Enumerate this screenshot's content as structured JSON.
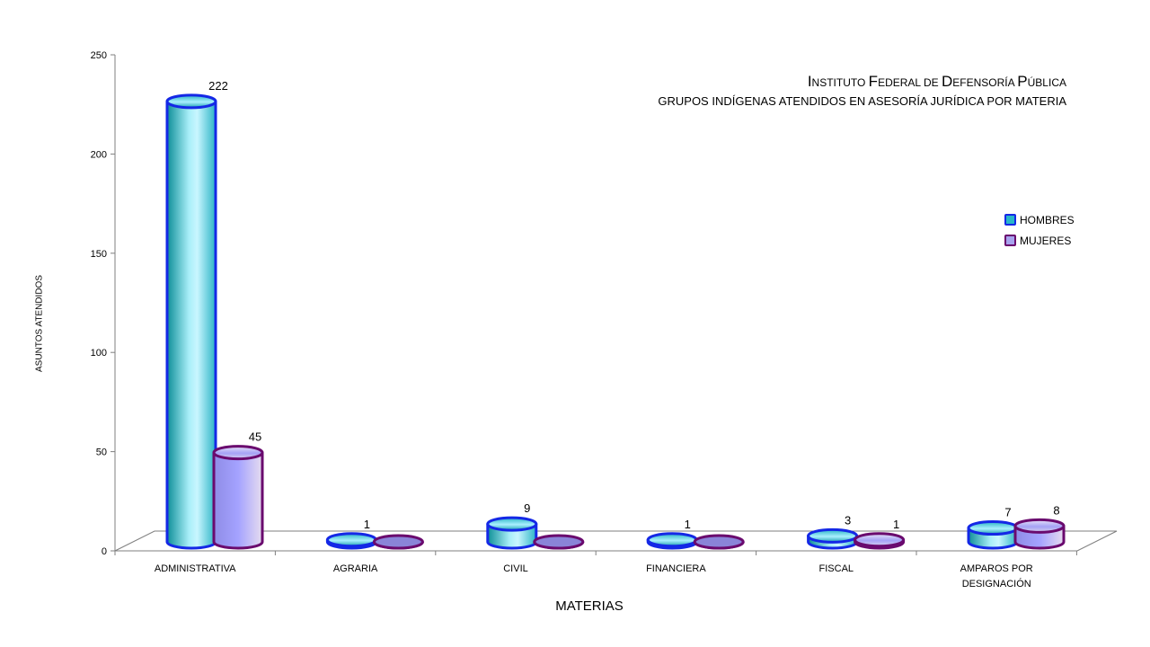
{
  "title_parts": [
    {
      "initial": "I",
      "rest": "nstituto "
    },
    {
      "initial": "F",
      "rest": "ederal de "
    },
    {
      "initial": "D",
      "rest": "efensoría "
    },
    {
      "initial": "P",
      "rest": "ública"
    }
  ],
  "subtitle": "GRUPOS INDÍGENAS ATENDIDOS EN ASESORÍA JURÍDICA POR MATERIA",
  "colors": {
    "hombres_fill": "#29b6c9",
    "hombres_stroke": "#1428e6",
    "mujeres_fill": "#a7a3ee",
    "mujeres_stroke": "#6a0a6e"
  },
  "chart_data": {
    "type": "bar",
    "title": "Instituto Federal de Defensoría Pública",
    "subtitle": "GRUPOS INDÍGENAS ATENDIDOS EN ASESORÍA JURÍDICA POR MATERIA",
    "xlabel": "MATERIAS",
    "ylabel": "ASUNTOS ATENDIDOS",
    "ylim": [
      0,
      250
    ],
    "yticks": [
      0,
      50,
      100,
      150,
      200,
      250
    ],
    "grid": false,
    "legend_position": "right",
    "categories": [
      [
        "ADMINISTRATIVA"
      ],
      [
        "AGRARIA"
      ],
      [
        "CIVIL"
      ],
      [
        "FINANCIERA"
      ],
      [
        "FISCAL"
      ],
      [
        "AMPAROS POR",
        "DESIGNACIÓN"
      ]
    ],
    "series": [
      {
        "name": "HOMBRES",
        "values": [
          222,
          1,
          9,
          1,
          3,
          7
        ],
        "labels": [
          "222",
          "1",
          "9",
          "1",
          "3",
          "7"
        ]
      },
      {
        "name": "MUJERES",
        "values": [
          45,
          0,
          0,
          0,
          1,
          8
        ],
        "labels": [
          "45",
          "",
          "",
          "",
          "1",
          "8"
        ]
      }
    ]
  }
}
